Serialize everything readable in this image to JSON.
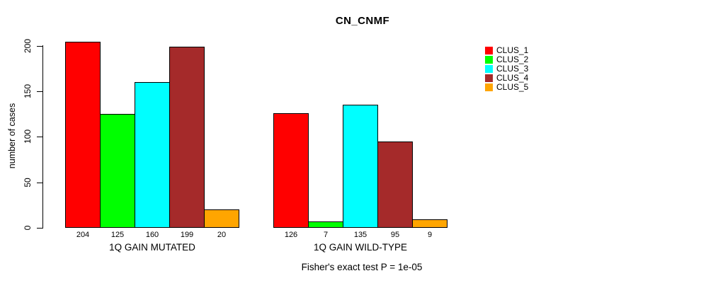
{
  "chart_data": {
    "type": "bar",
    "title": "CN_CNMF",
    "xlabel": "",
    "ylabel": "number of cases",
    "ylim": [
      0,
      200
    ],
    "yticks": [
      0,
      50,
      100,
      150,
      200
    ],
    "grid": false,
    "legend_position": "right",
    "series_labels": [
      "CLUS_1",
      "CLUS_2",
      "CLUS_3",
      "CLUS_4",
      "CLUS_5"
    ],
    "colors": [
      "#FF0000",
      "#00FF00",
      "#00FFFF",
      "#A52A2A",
      "#FFA500"
    ],
    "groups": [
      {
        "label": "1Q GAIN MUTATED",
        "values": [
          204,
          125,
          160,
          199,
          20
        ]
      },
      {
        "label": "1Q GAIN WILD-TYPE",
        "values": [
          126,
          7,
          135,
          95,
          9
        ]
      }
    ],
    "annotation": "Fisher's exact test P = 1e-05"
  }
}
